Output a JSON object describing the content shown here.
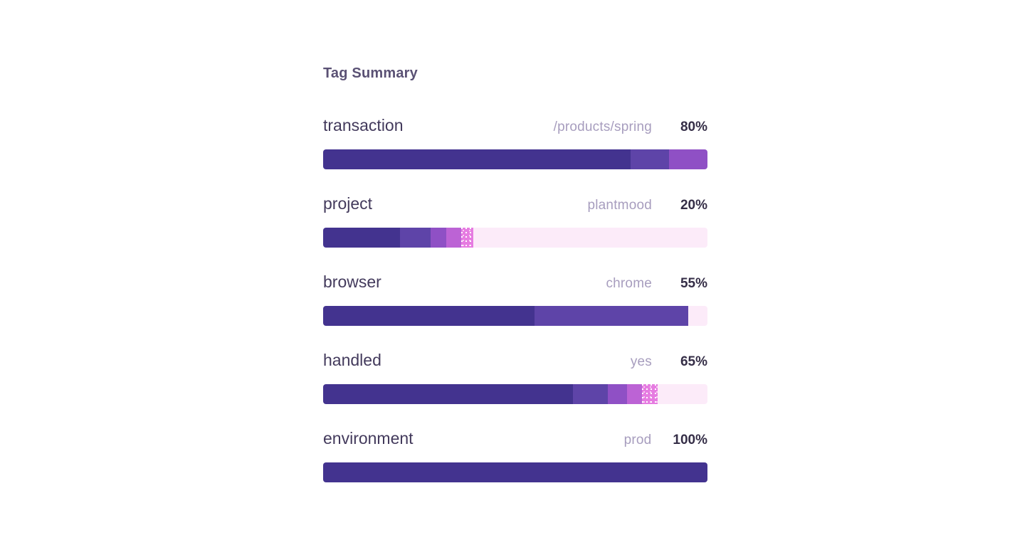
{
  "panel": {
    "title": "Tag Summary"
  },
  "colors": {
    "background": "#ffffff",
    "title_text": "#5A5174",
    "tag_name_text": "#433A5C",
    "top_value_text": "#A79DBE",
    "percent_text": "#352E47",
    "palette": {
      "p1": "#43338F",
      "p2": "#5E44A8",
      "p3": "#8F50C5",
      "p4": "#BC63D5",
      "p5": "#E67CE1",
      "p6": "#FCEBF9"
    }
  },
  "chart_data": {
    "type": "bar",
    "variant": "horizontal-stacked-percentage",
    "title": "Tag Summary",
    "xlim": [
      0,
      100
    ],
    "unit": "%",
    "rows": [
      {
        "tag": "transaction",
        "top_value": "/products/spring",
        "percent_label": "80%",
        "percent": 80,
        "segments": [
          {
            "value": 80,
            "palette": "p1"
          },
          {
            "value": 10,
            "palette": "p2"
          },
          {
            "value": 10,
            "palette": "p3"
          }
        ]
      },
      {
        "tag": "project",
        "top_value": "plantmood",
        "percent_label": "20%",
        "percent": 20,
        "segments": [
          {
            "value": 20,
            "palette": "p1"
          },
          {
            "value": 8,
            "palette": "p2"
          },
          {
            "value": 4,
            "palette": "p3"
          },
          {
            "value": 4,
            "palette": "p4"
          },
          {
            "value": 3,
            "palette": "p5"
          },
          {
            "value": 61,
            "palette": "p6"
          }
        ]
      },
      {
        "tag": "browser",
        "top_value": "chrome",
        "percent_label": "55%",
        "percent": 55,
        "segments": [
          {
            "value": 55,
            "palette": "p1"
          },
          {
            "value": 40,
            "palette": "p2"
          },
          {
            "value": 5,
            "palette": "p6"
          }
        ]
      },
      {
        "tag": "handled",
        "top_value": "yes",
        "percent_label": "65%",
        "percent": 65,
        "segments": [
          {
            "value": 65,
            "palette": "p1"
          },
          {
            "value": 9,
            "palette": "p2"
          },
          {
            "value": 5,
            "palette": "p3"
          },
          {
            "value": 4,
            "palette": "p4"
          },
          {
            "value": 4,
            "palette": "p5"
          },
          {
            "value": 13,
            "palette": "p6"
          }
        ]
      },
      {
        "tag": "environment",
        "top_value": "prod",
        "percent_label": "100%",
        "percent": 100,
        "segments": [
          {
            "value": 100,
            "palette": "p1"
          }
        ]
      }
    ]
  }
}
